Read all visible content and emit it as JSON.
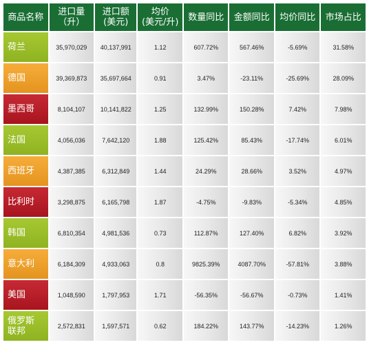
{
  "table": {
    "headers": [
      "商品名称",
      "进口量\n（升）",
      "进口额\n(美元)",
      "均价\n(美元/升)",
      "数量同比",
      "金额同比",
      "均价同比",
      "市场占比"
    ],
    "rows": [
      {
        "name": "荷兰",
        "color": "#9bbf2b",
        "cells": [
          "35,970,029",
          "40,137,991",
          "1.12",
          "607.72%",
          "567.46%",
          "-5.69%",
          "31.58%"
        ]
      },
      {
        "name": "德国",
        "color": "#f0a030",
        "cells": [
          "39,369,873",
          "35,697,664",
          "0.91",
          "3.47%",
          "-23.11%",
          "-25.69%",
          "28.09%"
        ]
      },
      {
        "name": "墨西哥",
        "color": "#b81e29",
        "cells": [
          "8,104,107",
          "10,141,822",
          "1.25",
          "132.99%",
          "150.28%",
          "7.42%",
          "7.98%"
        ]
      },
      {
        "name": "法国",
        "color": "#9bbf2b",
        "cells": [
          "4,056,036",
          "7,642,120",
          "1.88",
          "125.42%",
          "85.43%",
          "-17.74%",
          "6.01%"
        ]
      },
      {
        "name": "西班牙",
        "color": "#f0a030",
        "cells": [
          "4,387,385",
          "6,312,849",
          "1.44",
          "24.29%",
          "28.66%",
          "3.52%",
          "4.97%"
        ]
      },
      {
        "name": "比利时",
        "color": "#b81e29",
        "cells": [
          "3,298,875",
          "6,165,798",
          "1.87",
          "-4.75%",
          "-9.83%",
          "-5.34%",
          "4.85%"
        ]
      },
      {
        "name": "韩国",
        "color": "#9bbf2b",
        "cells": [
          "6,810,354",
          "4,981,536",
          "0.73",
          "112.87%",
          "127.40%",
          "6.82%",
          "3.92%"
        ]
      },
      {
        "name": "意大利",
        "color": "#f0a030",
        "cells": [
          "6,184,309",
          "4,933,063",
          "0.8",
          "9825.39%",
          "4087.70%",
          "-57.81%",
          "3.88%"
        ]
      },
      {
        "name": "美国",
        "color": "#b81e29",
        "cells": [
          "1,048,590",
          "1,797,953",
          "1.71",
          "-56.35%",
          "-56.67%",
          "-0.73%",
          "1.41%"
        ]
      },
      {
        "name": "俄罗斯\n联邦",
        "color": "#9bbf2b",
        "cells": [
          "2,572,831",
          "1,597,571",
          "0.62",
          "184.22%",
          "143.77%",
          "-14.23%",
          "1.26%"
        ]
      }
    ]
  },
  "colors": {
    "header_bg": "#1a6e34",
    "header_text": "#ffffff",
    "green": "#9bbf2b",
    "orange": "#f0a030",
    "red": "#b81e29"
  }
}
